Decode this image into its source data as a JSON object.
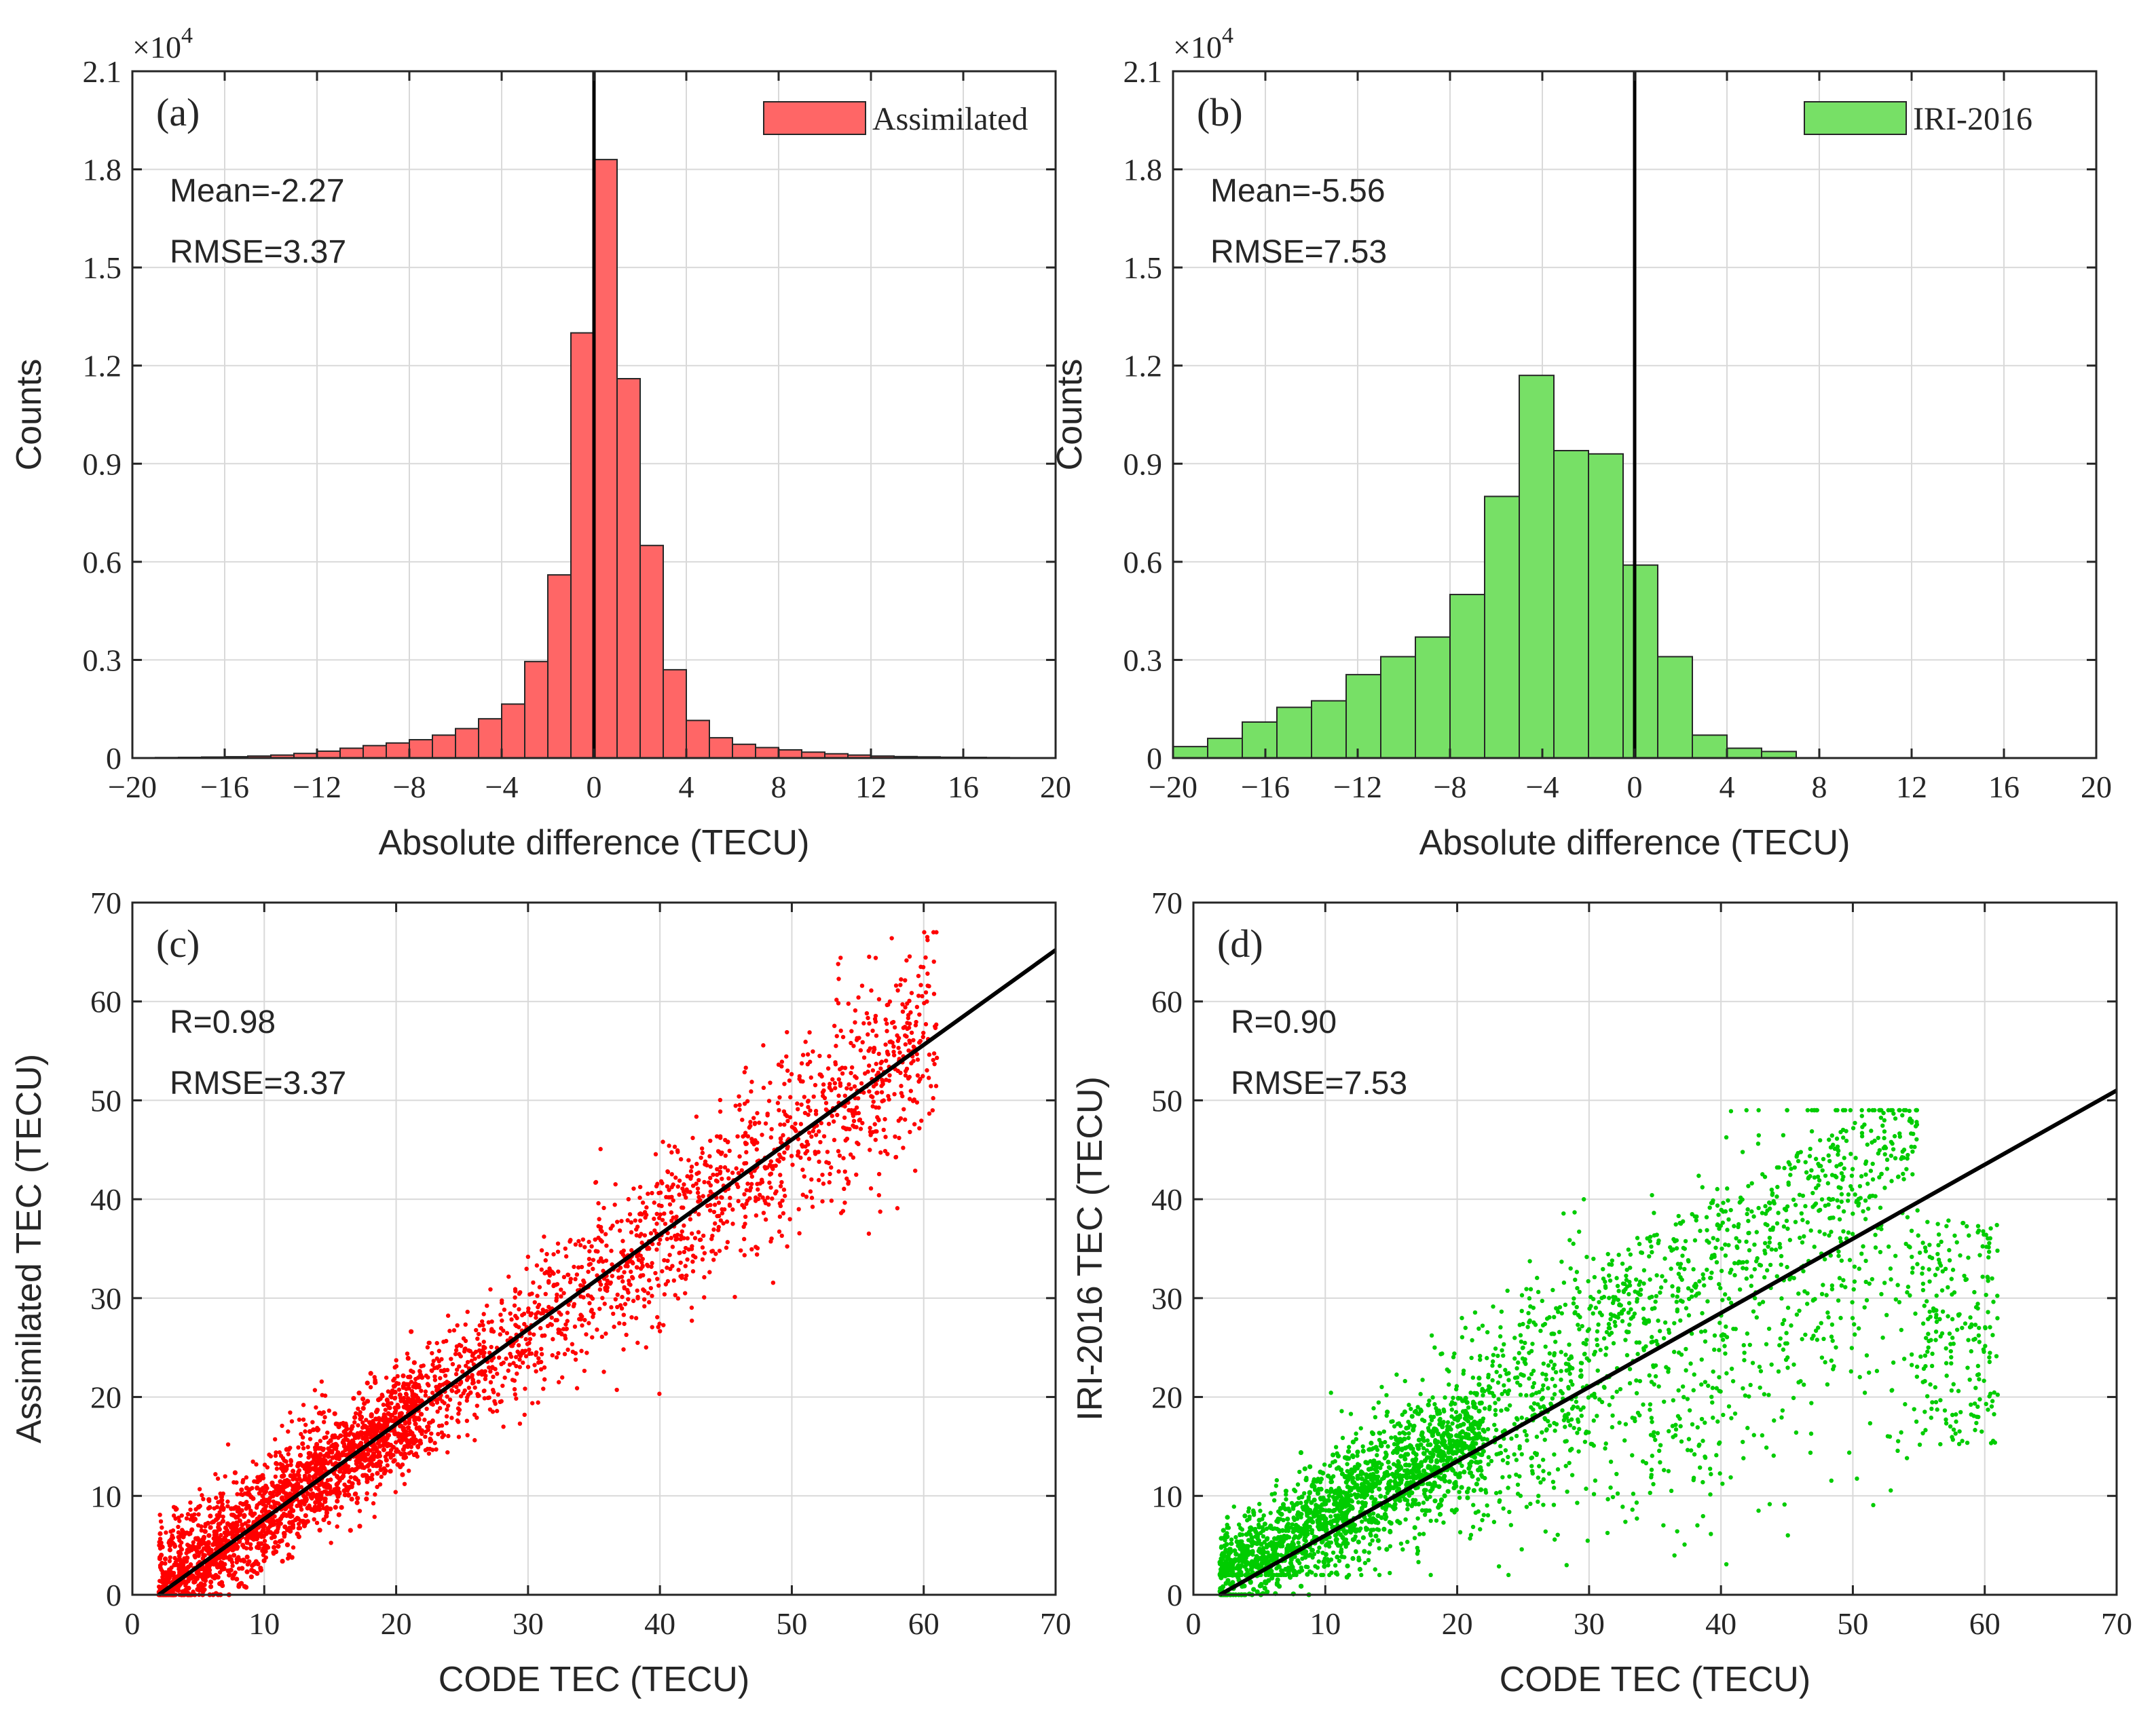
{
  "chart_data": [
    {
      "type": "bar",
      "panel_label": "(a)",
      "title": "",
      "xlabel": "Absolute difference (TECU)",
      "ylabel": "Counts",
      "xlim": [
        -20,
        20
      ],
      "ylim": [
        0,
        21000
      ],
      "xticks": [
        "−20",
        "−16",
        "−12",
        "−8",
        "−4",
        "0",
        "4",
        "8",
        "12",
        "16",
        "20"
      ],
      "yticks": [
        "0",
        "0.3",
        "0.6",
        "0.9",
        "1.2",
        "1.5",
        "1.8",
        "2.1"
      ],
      "y_multiplier_base": "×10",
      "y_multiplier_exp": "4",
      "legend": "Assimilated",
      "legend_position": "top-right",
      "color": "#ff6666",
      "bin_width": 1,
      "bin_edges_start": -20,
      "values": [
        10,
        15,
        20,
        30,
        40,
        60,
        90,
        140,
        210,
        300,
        380,
        460,
        560,
        700,
        900,
        1200,
        1650,
        2950,
        5600,
        13000,
        18300,
        11600,
        6500,
        2700,
        1150,
        620,
        420,
        320,
        250,
        180,
        130,
        90,
        60,
        45,
        35,
        25,
        20,
        15,
        10,
        5
      ],
      "annotations": [
        "Mean=-2.27",
        "RMSE=3.37"
      ],
      "vline_x": 0,
      "grid": true
    },
    {
      "type": "bar",
      "panel_label": "(b)",
      "title": "",
      "xlabel": "Absolute difference (TECU)",
      "ylabel": "Counts",
      "xlim": [
        -20,
        20
      ],
      "ylim": [
        0,
        21000
      ],
      "xticks": [
        "−20",
        "−16",
        "−12",
        "−8",
        "−4",
        "0",
        "4",
        "8",
        "12",
        "16",
        "20"
      ],
      "yticks": [
        "0",
        "0.3",
        "0.6",
        "0.9",
        "1.2",
        "1.5",
        "1.8",
        "2.1"
      ],
      "y_multiplier_base": "×10",
      "y_multiplier_exp": "4",
      "legend": "IRI-2016",
      "legend_position": "top-right",
      "color": "#77e066",
      "bin_width": 1.5,
      "bin_edges_start": -20,
      "values": [
        350,
        600,
        1100,
        1550,
        1750,
        2550,
        3100,
        3700,
        5000,
        8000,
        11700,
        9400,
        9300,
        5900,
        3100,
        700,
        300,
        200
      ],
      "annotations": [
        "Mean=-5.56",
        "RMSE=7.53"
      ],
      "vline_x": 0,
      "grid": true
    },
    {
      "type": "scatter",
      "panel_label": "(c)",
      "title": "",
      "xlabel": "CODE TEC (TECU)",
      "ylabel": "Assimilated TEC (TECU)",
      "xlim": [
        0,
        70
      ],
      "ylim": [
        0,
        70
      ],
      "xticks": [
        "0",
        "10",
        "20",
        "30",
        "40",
        "50",
        "60",
        "70"
      ],
      "yticks": [
        "0",
        "10",
        "20",
        "30",
        "40",
        "50",
        "60",
        "70"
      ],
      "color": "#ff0000",
      "fit_line": {
        "x": [
          2,
          70
        ],
        "y": [
          0,
          65.2
        ]
      },
      "point_cloud": {
        "x_range": [
          2,
          61
        ],
        "y_range": [
          0,
          67
        ],
        "trend": "y ≈ 0.96x − 1.9",
        "spread_tecu": 3.37
      },
      "annotations": [
        "R=0.98",
        "RMSE=3.37"
      ],
      "grid": true
    },
    {
      "type": "scatter",
      "panel_label": "(d)",
      "title": "",
      "xlabel": "CODE TEC (TECU)",
      "ylabel": "IRI-2016 TEC (TECU)",
      "xlim": [
        0,
        70
      ],
      "ylim": [
        0,
        70
      ],
      "xticks": [
        "0",
        "10",
        "20",
        "30",
        "40",
        "50",
        "60",
        "70"
      ],
      "yticks": [
        "0",
        "10",
        "20",
        "30",
        "40",
        "50",
        "60",
        "70"
      ],
      "color": "#00cc00",
      "fit_line": {
        "x": [
          2,
          70
        ],
        "y": [
          0,
          51
        ]
      },
      "point_cloud": {
        "x_range": [
          2,
          61
        ],
        "y_range": [
          2,
          49
        ],
        "trend": "y ≈ 0.75x − 1.5",
        "spread_tecu": 7.53
      },
      "annotations": [
        "R=0.90",
        "RMSE=7.53"
      ],
      "grid": true
    }
  ]
}
